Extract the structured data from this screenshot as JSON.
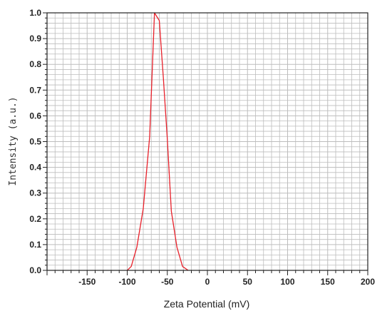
{
  "chart_data": {
    "type": "line",
    "title": "",
    "xlabel": "Zeta Potential (mV)",
    "ylabel": "Intensity (a.u.)",
    "xlim": [
      -200,
      200
    ],
    "ylim": [
      0,
      1
    ],
    "grid": true,
    "colors": {
      "line": "#e8202a",
      "grid": "#bdbdbd",
      "axis": "#222222",
      "background": "#ffffff"
    },
    "x_ticks": [
      -150,
      -100,
      -50,
      0,
      50,
      100,
      150,
      200
    ],
    "x_tick_labels": [
      "-150",
      "-100",
      "-50",
      "0",
      "50",
      "100",
      "150",
      "200"
    ],
    "y_ticks": [
      0,
      0.1,
      0.2,
      0.3,
      0.4,
      0.5,
      0.6,
      0.7,
      0.8,
      0.9,
      1.0
    ],
    "y_tick_labels": [
      "0.0",
      "0.1",
      "0.2",
      "0.3",
      "0.4",
      "0.5",
      "0.6",
      "0.7",
      "0.8",
      "0.9",
      "1.0"
    ],
    "series": [
      {
        "x": [
          -100,
          -95,
          -88,
          -80,
          -72,
          -66,
          -60,
          -55,
          -50,
          -45,
          -38,
          -31,
          -24
        ],
        "y": [
          0.0,
          0.015,
          0.09,
          0.24,
          0.52,
          1.0,
          0.97,
          0.75,
          0.51,
          0.23,
          0.09,
          0.015,
          0.0
        ]
      }
    ]
  }
}
